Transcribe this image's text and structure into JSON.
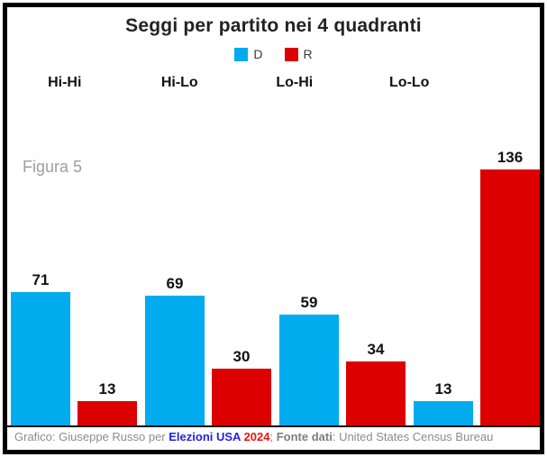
{
  "title": "Seggi per partito nei 4 quadranti",
  "figure_label": "Figura 5",
  "legend": {
    "items": [
      {
        "label": "D",
        "color": "#00ACEE"
      },
      {
        "label": "R",
        "color": "#DD0000"
      }
    ]
  },
  "chart_data": {
    "type": "bar",
    "title": "Seggi per partito nei 4 quadranti",
    "categories": [
      "Hi-Hi",
      "Hi-Lo",
      "Lo-Hi",
      "Lo-Lo"
    ],
    "series": [
      {
        "name": "D",
        "color": "#00ACEE",
        "values": [
          71,
          69,
          59,
          13
        ]
      },
      {
        "name": "R",
        "color": "#DD0000",
        "values": [
          13,
          30,
          34,
          136
        ]
      }
    ],
    "xlabel": "",
    "ylabel": "",
    "ylim": [
      0,
      136
    ],
    "grid": false,
    "legend_position": "top",
    "value_labels": true,
    "annotations": [
      "Figura 5"
    ]
  },
  "footer": {
    "credit_prefix": "Grafico: Giuseppe Russo per ",
    "site_name": "Elezioni USA",
    "site_year": " 2024",
    "separator": "; ",
    "source_label": "Fonte dati",
    "source_value": ": United States Census Bureau"
  },
  "colors": {
    "bar_blue": "#00ACEE",
    "bar_red": "#DD0000",
    "frame": "#000000",
    "figure_label": "#9e9e9e",
    "footer_text": "#8c8c8c",
    "footer_link_blue": "#2222e6",
    "footer_link_red": "#ee1111"
  }
}
